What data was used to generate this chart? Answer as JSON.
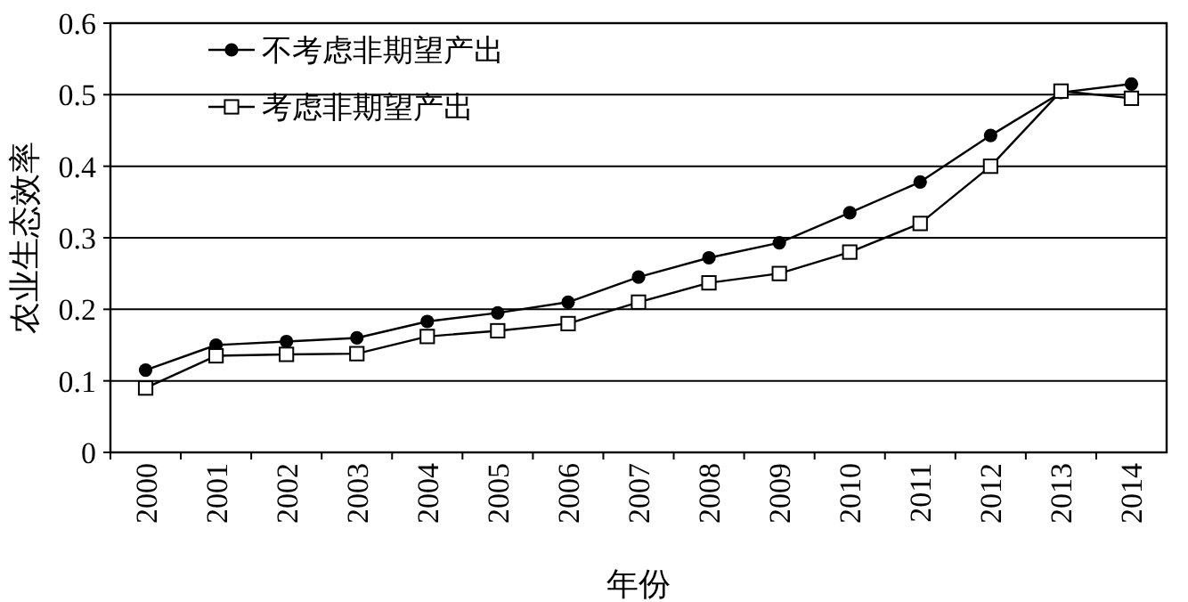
{
  "chart_data": {
    "type": "line",
    "xlabel": "年份",
    "ylabel": "农业生态效率",
    "categories": [
      "2000",
      "2001",
      "2002",
      "2003",
      "2004",
      "2005",
      "2006",
      "2007",
      "2008",
      "2009",
      "2010",
      "2011",
      "2012",
      "2013",
      "2014"
    ],
    "series": [
      {
        "name": "不考虑非期望产出",
        "color": "#000000",
        "marker": "circle",
        "values": [
          0.115,
          0.15,
          0.155,
          0.16,
          0.183,
          0.195,
          0.21,
          0.245,
          0.272,
          0.293,
          0.335,
          0.378,
          0.443,
          0.503,
          0.515
        ]
      },
      {
        "name": "考虑非期望产出",
        "color": "#000000",
        "marker": "square",
        "values": [
          0.09,
          0.135,
          0.137,
          0.138,
          0.162,
          0.17,
          0.18,
          0.21,
          0.237,
          0.25,
          0.28,
          0.32,
          0.4,
          0.505,
          0.495
        ]
      }
    ],
    "ylim": [
      0,
      0.6
    ],
    "yticks": [
      0,
      0.1,
      0.2,
      0.3,
      0.4,
      0.5,
      0.6
    ],
    "grid": "y",
    "legend": "top left"
  }
}
